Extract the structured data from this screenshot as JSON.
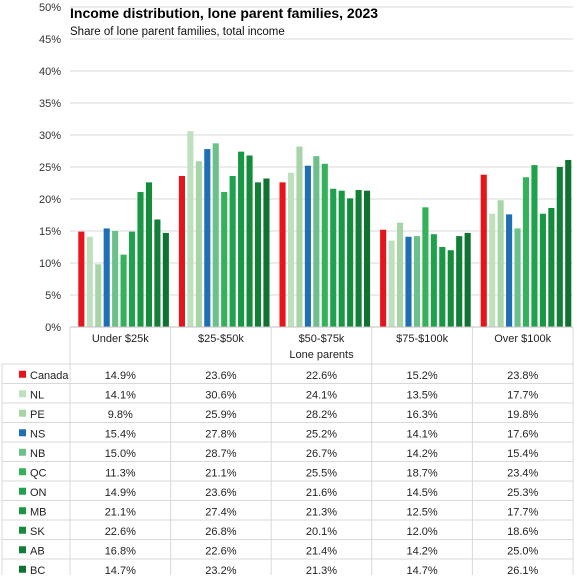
{
  "chart_data": {
    "type": "bar",
    "title": "Income distribution,  lone parent families, 2023",
    "subtitle": "Share of lone parent families, total income",
    "xlabel": "Lone parents",
    "ylabel": "",
    "ylim": [
      0,
      50
    ],
    "yticks": [
      "0%",
      "5%",
      "10%",
      "15%",
      "20%",
      "25%",
      "30%",
      "35%",
      "40%",
      "45%",
      "50%"
    ],
    "categories": [
      "Under $25k",
      "$25-$50k",
      "$50-$75k",
      "$75-$100k",
      "Over $100k"
    ],
    "series": [
      {
        "name": "Canada",
        "color": "#e8141c",
        "values": [
          14.9,
          23.6,
          22.6,
          15.2,
          23.8
        ],
        "labels": [
          "14.9%",
          "23.6%",
          "22.6%",
          "15.2%",
          "23.8%"
        ]
      },
      {
        "name": "NL",
        "color": "#bfe0bf",
        "values": [
          14.1,
          30.6,
          24.1,
          13.5,
          17.7
        ],
        "labels": [
          "14.1%",
          "30.6%",
          "24.1%",
          "13.5%",
          "17.7%"
        ]
      },
      {
        "name": "PE",
        "color": "#a8d5a8",
        "values": [
          9.8,
          25.9,
          28.2,
          16.3,
          19.8
        ],
        "labels": [
          "9.8%",
          "25.9%",
          "28.2%",
          "16.3%",
          "19.8%"
        ]
      },
      {
        "name": "NS",
        "color": "#1f6fb4",
        "values": [
          15.4,
          27.8,
          25.2,
          14.1,
          17.6
        ],
        "labels": [
          "15.4%",
          "27.8%",
          "25.2%",
          "14.1%",
          "17.6%"
        ]
      },
      {
        "name": "NB",
        "color": "#6cc08a",
        "values": [
          15.0,
          28.7,
          26.7,
          14.2,
          15.4
        ],
        "labels": [
          "15.0%",
          "28.7%",
          "26.7%",
          "14.2%",
          "15.4%"
        ]
      },
      {
        "name": "QC",
        "color": "#33b25a",
        "values": [
          11.3,
          21.1,
          25.5,
          18.7,
          23.4
        ],
        "labels": [
          "11.3%",
          "21.1%",
          "25.5%",
          "18.7%",
          "23.4%"
        ]
      },
      {
        "name": "ON",
        "color": "#1ea34c",
        "values": [
          14.9,
          23.6,
          21.6,
          14.5,
          25.3
        ],
        "labels": [
          "14.9%",
          "23.6%",
          "21.6%",
          "14.5%",
          "25.3%"
        ]
      },
      {
        "name": "MB",
        "color": "#189843",
        "values": [
          21.1,
          27.4,
          21.3,
          12.5,
          17.7
        ],
        "labels": [
          "21.1%",
          "27.4%",
          "21.3%",
          "12.5%",
          "17.7%"
        ]
      },
      {
        "name": "SK",
        "color": "#158c3c",
        "values": [
          22.6,
          26.8,
          20.1,
          12.0,
          18.6
        ],
        "labels": [
          "22.6%",
          "26.8%",
          "20.1%",
          "12.0%",
          "18.6%"
        ]
      },
      {
        "name": "AB",
        "color": "#127f36",
        "values": [
          16.8,
          22.6,
          21.4,
          14.2,
          25.0
        ],
        "labels": [
          "16.8%",
          "22.6%",
          "21.4%",
          "14.2%",
          "25.0%"
        ]
      },
      {
        "name": "BC",
        "color": "#0f7230",
        "values": [
          14.7,
          23.2,
          21.3,
          14.7,
          26.1
        ],
        "labels": [
          "14.7%",
          "23.2%",
          "21.3%",
          "14.7%",
          "26.1%"
        ]
      }
    ],
    "grid": true,
    "legend": "data-table-below"
  }
}
